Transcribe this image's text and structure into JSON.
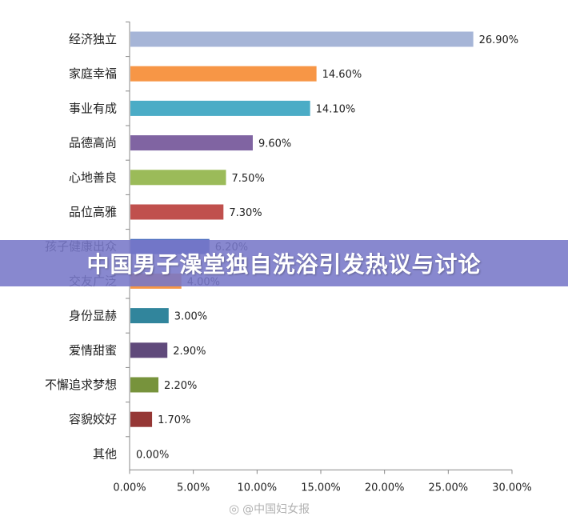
{
  "banner": {
    "title": "中国男子澡堂独自洗浴引发热议与讨论"
  },
  "watermark": {
    "text": "@中国妇女报",
    "icon": "weibo-icon"
  },
  "chart_data": {
    "type": "bar",
    "orientation": "horizontal",
    "categories": [
      "经济独立",
      "家庭幸福",
      "事业有成",
      "品德高尚",
      "心地善良",
      "品位高雅",
      "孩子健康出众",
      "交友广泛",
      "身份显赫",
      "爱情甜蜜",
      "不懈追求梦想",
      "容貌姣好",
      "其他"
    ],
    "values": [
      26.9,
      14.6,
      14.1,
      9.6,
      7.5,
      7.3,
      6.2,
      4.0,
      3.0,
      2.9,
      2.2,
      1.7,
      0.0
    ],
    "value_labels": [
      "26.90%",
      "14.60%",
      "14.10%",
      "9.60%",
      "7.50%",
      "7.30%",
      "6.20%",
      "4.00%",
      "3.00%",
      "2.90%",
      "2.20%",
      "1.70%",
      "0.00%"
    ],
    "colors": [
      "#a6b5d7",
      "#f79646",
      "#4bacc6",
      "#8064a2",
      "#9bbb59",
      "#c0504d",
      "#4f6fc0",
      "#f79646",
      "#31859c",
      "#604a7b",
      "#77933c",
      "#953735",
      "#cccccc"
    ],
    "xlim": [
      0,
      30
    ],
    "x_ticks": [
      "0.00%",
      "5.00%",
      "10.00%",
      "15.00%",
      "20.00%",
      "25.00%",
      "30.00%"
    ],
    "grid": false
  }
}
